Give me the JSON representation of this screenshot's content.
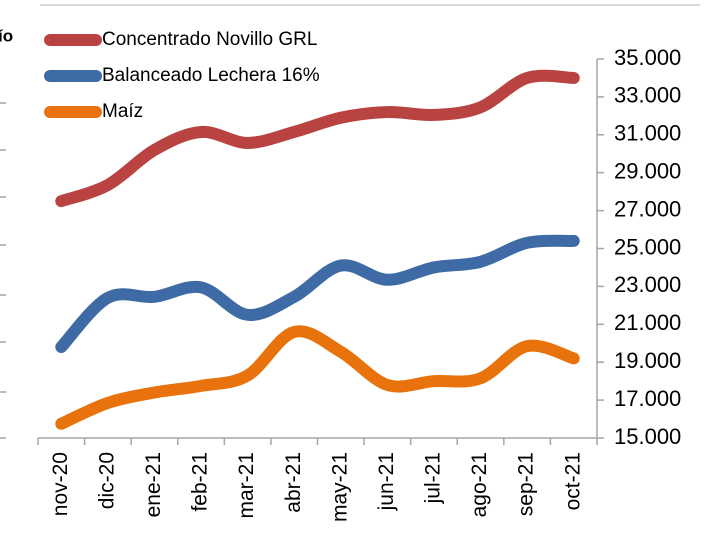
{
  "chart_data": {
    "type": "line",
    "title": "ío",
    "categories": [
      "nov-20",
      "dic-20",
      "ene-21",
      "feb-21",
      "mar-21",
      "abr-21",
      "may-21",
      "jun-21",
      "jul-21",
      "ago-21",
      "sep-21",
      "oct-21"
    ],
    "series": [
      {
        "name": "Concentrado Novillo GRL",
        "color": "#b94340",
        "values": [
          27500,
          28350,
          30200,
          31150,
          30570,
          31150,
          31900,
          32200,
          32050,
          32450,
          34000,
          34000
        ]
      },
      {
        "name": "Balanceado Lechera 16%",
        "color": "#3e6aa6",
        "values": [
          19800,
          22400,
          22450,
          22950,
          21500,
          22450,
          24100,
          23350,
          24000,
          24300,
          25300,
          25400
        ]
      },
      {
        "name": "Maíz",
        "color": "#e8730c",
        "values": [
          15750,
          16850,
          17400,
          17750,
          18300,
          20600,
          19550,
          17800,
          18000,
          18150,
          19850,
          19200
        ]
      }
    ],
    "ylim": [
      15000,
      35000
    ],
    "yticks": [
      {
        "value": 15000,
        "label": "15.000"
      },
      {
        "value": 17000,
        "label": "17.000"
      },
      {
        "value": 19000,
        "label": "19.000"
      },
      {
        "value": 21000,
        "label": "21.000"
      },
      {
        "value": 23000,
        "label": "23.000"
      },
      {
        "value": 25000,
        "label": "25.000"
      },
      {
        "value": 27000,
        "label": "27.000"
      },
      {
        "value": 29000,
        "label": "29.000"
      },
      {
        "value": 31000,
        "label": "31.000"
      },
      {
        "value": 33000,
        "label": "33.000"
      },
      {
        "value": 35000,
        "label": "35.000"
      }
    ],
    "legend": "upper left"
  }
}
